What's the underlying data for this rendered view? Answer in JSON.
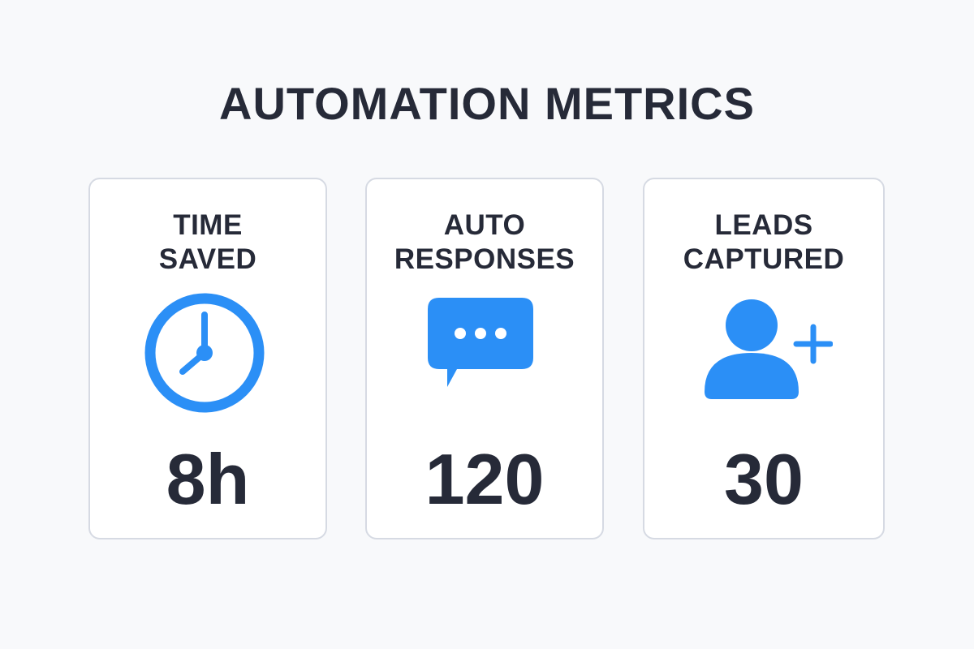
{
  "header": {
    "title": "AUTOMATION METRICS"
  },
  "colors": {
    "accent": "#2b8ff6",
    "text": "#262a38",
    "card_border": "#d6dae3",
    "background": "#f8f9fb"
  },
  "metrics": [
    {
      "label_line1": "TIME",
      "label_line2": "SAVED",
      "icon": "clock-icon",
      "value": "8h"
    },
    {
      "label_line1": "AUTO",
      "label_line2": "RESPONSES",
      "icon": "chat-bubble-icon",
      "value": "120"
    },
    {
      "label_line1": "LEADS",
      "label_line2": "CAPTURED",
      "icon": "add-user-icon",
      "value": "30"
    }
  ]
}
